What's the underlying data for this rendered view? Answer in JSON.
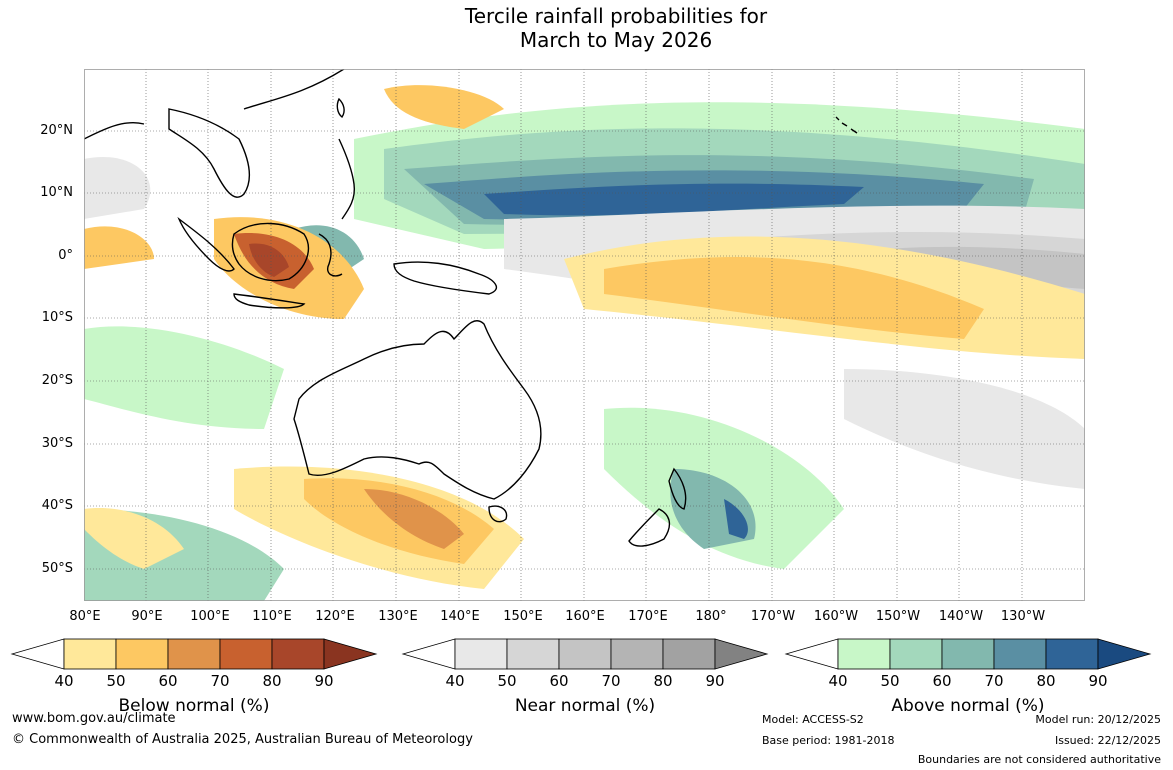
{
  "title_line1": "Tercile rainfall probabilities for",
  "title_line2": "March to May 2026",
  "latitude_labels": [
    "20°N",
    "10°N",
    "0°",
    "10°S",
    "20°S",
    "30°S",
    "40°S",
    "50°S"
  ],
  "longitude_labels": [
    "80°E",
    "90°E",
    "100°E",
    "110°E",
    "120°E",
    "130°E",
    "140°E",
    "150°E",
    "160°E",
    "170°E",
    "180°",
    "170°W",
    "160°W",
    "150°W",
    "140°W",
    "130°W"
  ],
  "colorbars": [
    {
      "title": "Below normal (%)",
      "ticks": [
        "40",
        "50",
        "60",
        "70",
        "80",
        "90"
      ],
      "colors": [
        "#ffffff",
        "#ffe89a",
        "#fdc862",
        "#e0934a",
        "#c8612f",
        "#a8462a",
        "#8a3420"
      ]
    },
    {
      "title": "Near normal (%)",
      "ticks": [
        "40",
        "50",
        "60",
        "70",
        "80",
        "90"
      ],
      "colors": [
        "#ffffff",
        "#e8e8e8",
        "#d6d6d6",
        "#c4c4c4",
        "#b4b4b4",
        "#a2a2a2",
        "#828282"
      ]
    },
    {
      "title": "Above normal (%)",
      "ticks": [
        "40",
        "50",
        "60",
        "70",
        "80",
        "90"
      ],
      "colors": [
        "#ffffff",
        "#c8f7c8",
        "#a3d8bc",
        "#82b8ae",
        "#5a8fa3",
        "#2f6497",
        "#1a4a80"
      ]
    }
  ],
  "footer": {
    "website": "www.bom.gov.au/climate",
    "copyright": "© Commonwealth of Australia 2025, Australian Bureau of Meteorology",
    "model": "Model: ACCESS-S2",
    "base_period": "Base period: 1981-2018",
    "model_run": "Model run: 20/12/2025",
    "issued": "Issued: 22/12/2025",
    "disclaimer": "Boundaries are not considered authoritative"
  }
}
